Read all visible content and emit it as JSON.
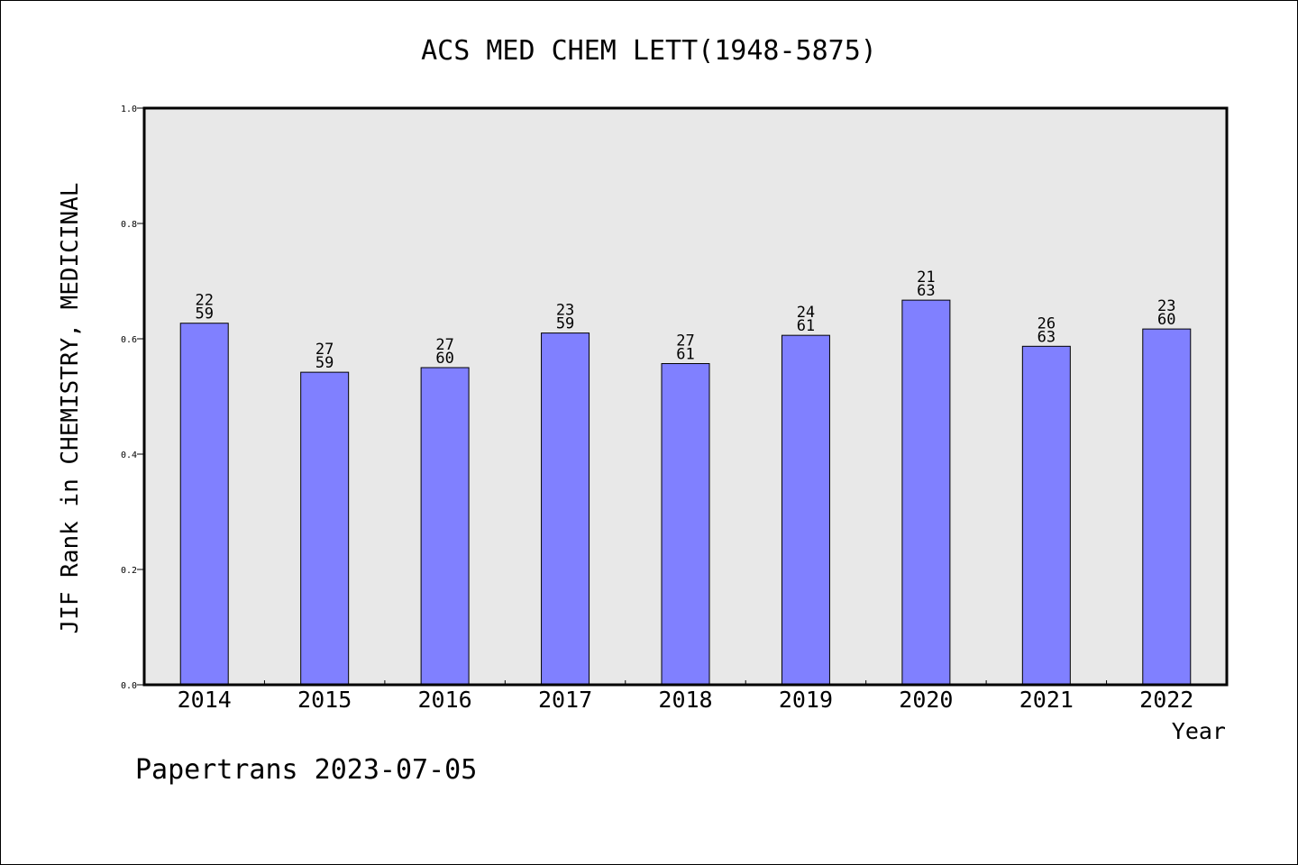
{
  "chart_data": {
    "type": "bar",
    "title": "ACS MED CHEM LETT(1948-5875)",
    "xlabel": "Year",
    "ylabel": "JIF Rank in CHEMISTRY, MEDICINAL",
    "categories": [
      "2014",
      "2015",
      "2016",
      "2017",
      "2018",
      "2019",
      "2020",
      "2021",
      "2022"
    ],
    "values": [
      0.627,
      0.542,
      0.55,
      0.61,
      0.557,
      0.606,
      0.667,
      0.587,
      0.617
    ],
    "bar_labels": [
      [
        "22",
        "59"
      ],
      [
        "27",
        "59"
      ],
      [
        "27",
        "60"
      ],
      [
        "23",
        "59"
      ],
      [
        "27",
        "61"
      ],
      [
        "24",
        "61"
      ],
      [
        "21",
        "63"
      ],
      [
        "26",
        "63"
      ],
      [
        "23",
        "60"
      ]
    ],
    "ylim": [
      0,
      1.0
    ],
    "yticks": [
      "0.0",
      "0.2",
      "0.4",
      "0.6",
      "0.8",
      "1.0"
    ],
    "colors": {
      "bar": "#8080ff",
      "plot_background": "#e8e8e8"
    },
    "grid": false,
    "legend": "none"
  },
  "footer": {
    "text": "Papertrans 2023-07-05"
  }
}
